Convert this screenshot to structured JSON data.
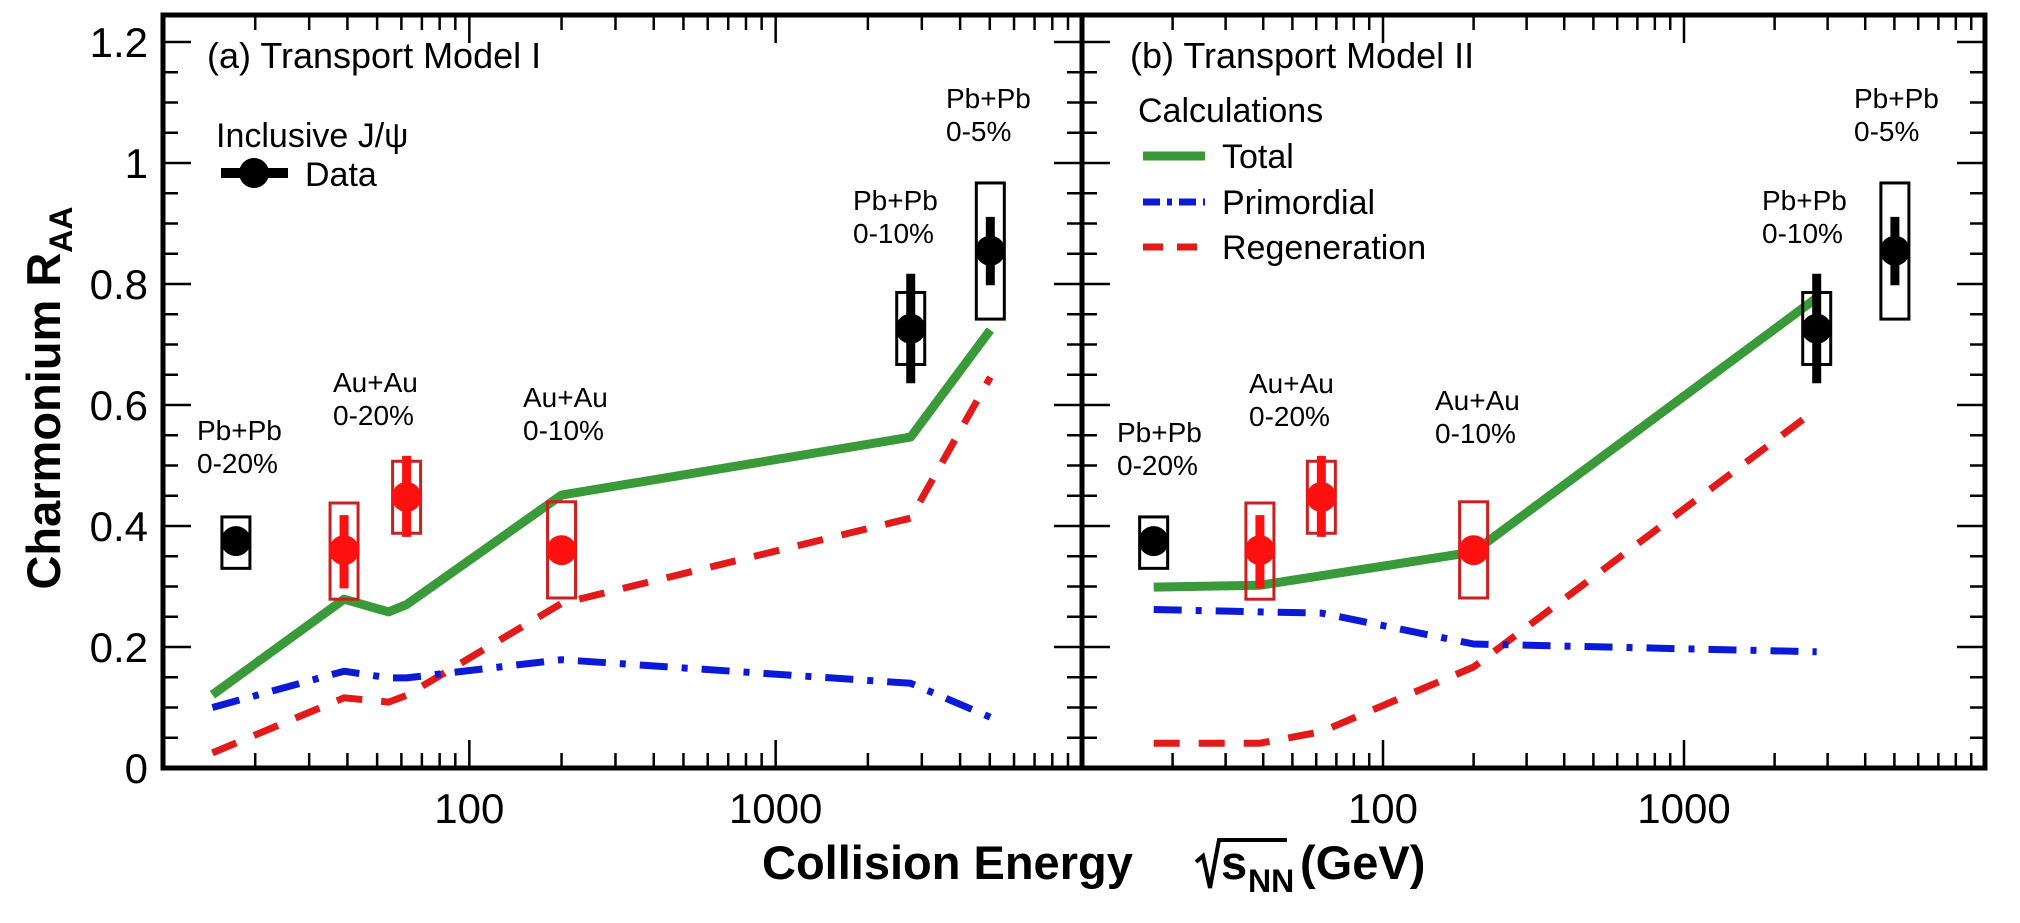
{
  "chart_data": {
    "type": "line",
    "xlabel": "Collision Energy √s_NN (GeV)",
    "xlabel_parts": {
      "main": "Collision Energy",
      "sqrt_symbol": "√",
      "var": "s",
      "sub": "NN",
      "unit": "(GeV)"
    },
    "ylabel": "Charmonium R_AA",
    "ylabel_parts": {
      "main": "Charmonium R",
      "sub": "AA"
    },
    "xscale": "log",
    "xlim": [
      10,
      10000
    ],
    "ylim": [
      0,
      1.25
    ],
    "x_major_ticks": [
      100,
      1000
    ],
    "x_tick_labels": [
      "100",
      "1000"
    ],
    "y_major_ticks": [
      0,
      0.2,
      0.4,
      0.6,
      0.8,
      1.0,
      1.2
    ],
    "y_tick_labels": [
      "0",
      "0.2",
      "0.4",
      "0.6",
      "0.8",
      "1",
      "1.2"
    ],
    "y_minor_step": 0.05,
    "grid": false,
    "colors": {
      "total": "#3a9a3a",
      "primordial": "#0a1ad6",
      "regeneration": "#e31a1a",
      "data_sps_lhc": "#000000",
      "data_rhic": "#ff1010",
      "box_rhic": "#cc2020"
    },
    "data_points": [
      {
        "system": "Pb+Pb",
        "centrality": "0-20%",
        "sqrt_s": 17.3,
        "raa": 0.375,
        "stat_lo": 0.36,
        "stat_hi": 0.39,
        "sys_lo": 0.33,
        "sys_hi": 0.415,
        "color_group": "black"
      },
      {
        "system": "Au+Au",
        "centrality": "0-20%",
        "sqrt_s": 39,
        "raa": 0.36,
        "stat_lo": 0.297,
        "stat_hi": 0.418,
        "sys_lo": 0.279,
        "sys_hi": 0.438,
        "color_group": "red"
      },
      {
        "system": "Au+Au",
        "centrality": "0-20%",
        "sqrt_s": 62.4,
        "raa": 0.448,
        "stat_lo": 0.382,
        "stat_hi": 0.516,
        "sys_lo": 0.388,
        "sys_hi": 0.507,
        "color_group": "red"
      },
      {
        "system": "Au+Au",
        "centrality": "0-10%",
        "sqrt_s": 200,
        "raa": 0.36,
        "stat_lo": 0.34,
        "stat_hi": 0.38,
        "sys_lo": 0.281,
        "sys_hi": 0.44,
        "color_group": "red"
      },
      {
        "system": "Pb+Pb",
        "centrality": "0-10%",
        "sqrt_s": 2760,
        "raa": 0.726,
        "stat_lo": 0.636,
        "stat_hi": 0.817,
        "sys_lo": 0.667,
        "sys_hi": 0.786,
        "color_group": "black"
      },
      {
        "system": "Pb+Pb",
        "centrality": "0-5%",
        "sqrt_s": 5020,
        "raa": 0.855,
        "stat_lo": 0.798,
        "stat_hi": 0.911,
        "sys_lo": 0.742,
        "sys_hi": 0.967,
        "color_group": "black"
      }
    ],
    "panels": [
      {
        "id": "a",
        "title": "(a) Transport Model I",
        "legend": {
          "header": "Inclusive J/ψ",
          "entries": [
            {
              "label": "Data",
              "style": "marker"
            }
          ]
        },
        "annotations": [
          {
            "lines": [
              "Pb+Pb",
              "0-20%"
            ],
            "near_sqrt_s": 17.3
          },
          {
            "lines": [
              "Au+Au",
              "0-20%"
            ],
            "near_sqrt_s": 39
          },
          {
            "lines": [
              "Au+Au",
              "0-10%"
            ],
            "near_sqrt_s": 200
          },
          {
            "lines": [
              "Pb+Pb",
              "0-10%"
            ],
            "near_sqrt_s": 2760
          },
          {
            "lines": [
              "Pb+Pb",
              "0-5%"
            ],
            "near_sqrt_s": 5020
          }
        ],
        "series": [
          {
            "name": "Total",
            "style": "solid",
            "x": [
              14.5,
              39,
              54.5,
              62.4,
              200,
              2760,
              5020
            ],
            "y": [
              0.121,
              0.279,
              0.258,
              0.27,
              0.451,
              0.547,
              0.724
            ]
          },
          {
            "name": "Primordial",
            "style": "dashdot",
            "x": [
              14.5,
              39,
              54.5,
              62.4,
              200,
              2760,
              5020
            ],
            "y": [
              0.1,
              0.16,
              0.149,
              0.149,
              0.179,
              0.14,
              0.084
            ]
          },
          {
            "name": "Regeneration",
            "style": "dashed",
            "x": [
              14.5,
              39,
              54.5,
              62.4,
              200,
              2760,
              5020
            ],
            "y": [
              0.025,
              0.116,
              0.109,
              0.12,
              0.272,
              0.413,
              0.646
            ]
          }
        ]
      },
      {
        "id": "b",
        "title": "(b) Transport Model II",
        "legend": {
          "header": "Calculations",
          "entries": [
            {
              "label": "Total",
              "style": "solid",
              "series": "total"
            },
            {
              "label": "Primordial",
              "style": "dashdot",
              "series": "primordial"
            },
            {
              "label": "Regeneration",
              "style": "dashed",
              "series": "regeneration"
            }
          ]
        },
        "annotations": [
          {
            "lines": [
              "Pb+Pb",
              "0-20%"
            ],
            "near_sqrt_s": 17.3
          },
          {
            "lines": [
              "Au+Au",
              "0-20%"
            ],
            "near_sqrt_s": 39
          },
          {
            "lines": [
              "Au+Au",
              "0-10%"
            ],
            "near_sqrt_s": 200
          },
          {
            "lines": [
              "Pb+Pb",
              "0-10%"
            ],
            "near_sqrt_s": 2760
          },
          {
            "lines": [
              "Pb+Pb",
              "0-5%"
            ],
            "near_sqrt_s": 5020
          }
        ],
        "series": [
          {
            "name": "Total",
            "style": "solid",
            "x": [
              17.3,
              39,
              200,
              2760
            ],
            "y": [
              0.299,
              0.302,
              0.357,
              0.777
            ]
          },
          {
            "name": "Primordial",
            "style": "dashdot",
            "x": [
              17.3,
              39,
              62.4,
              200,
              2760
            ],
            "y": [
              0.262,
              0.258,
              0.256,
              0.205,
              0.192
            ]
          },
          {
            "name": "Regeneration",
            "style": "dashed",
            "x": [
              17.3,
              39,
              62.4,
              200,
              2760
            ],
            "y": [
              0.041,
              0.041,
              0.06,
              0.167,
              0.593
            ]
          }
        ]
      }
    ]
  }
}
